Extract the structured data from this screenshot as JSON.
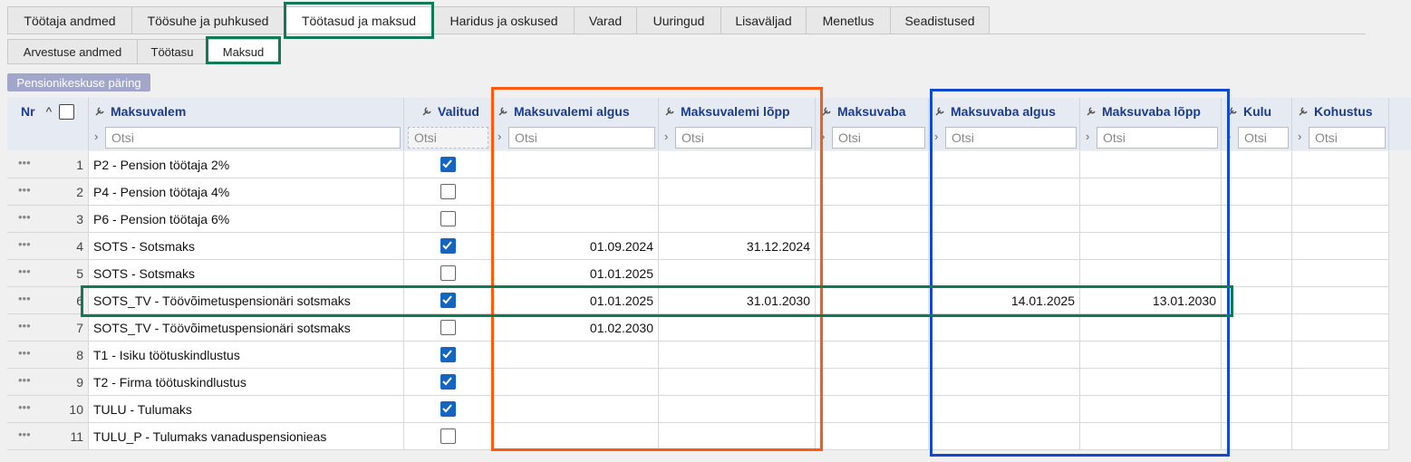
{
  "tabs": [
    "Töötaja andmed",
    "Töösuhe ja puhkused",
    "Töötasud ja maksud",
    "Haridus ja oskused",
    "Varad",
    "Uuringud",
    "Lisaväljad",
    "Menetlus",
    "Seadistused"
  ],
  "active_tab": 2,
  "subtabs": [
    "Arvestuse andmed",
    "Töötasu",
    "Maksud"
  ],
  "active_subtab": 2,
  "button": "Pensionikeskuse päring",
  "table": {
    "columns": [
      "Nr",
      "Maksuvalem",
      "Valitud",
      "Maksuvalemi algus",
      "Maksuvalemi lõpp",
      "Maksuvaba",
      "Maksuvaba algus",
      "Maksuvaba lõpp",
      "Kulu",
      "Kohustus"
    ],
    "filter_placeholder": "Otsi",
    "rows": [
      {
        "nr": 1,
        "maksuvalem": "P2 - Pension töötaja 2%",
        "valitud": true
      },
      {
        "nr": 2,
        "maksuvalem": "P4 - Pension töötaja 4%",
        "valitud": false
      },
      {
        "nr": 3,
        "maksuvalem": "P6 - Pension töötaja 6%",
        "valitud": false
      },
      {
        "nr": 4,
        "maksuvalem": "SOTS - Sotsmaks",
        "valitud": true,
        "maksuvalemi_algus": "01.09.2024",
        "maksuvalemi_lopp": "31.12.2024"
      },
      {
        "nr": 5,
        "maksuvalem": "SOTS - Sotsmaks",
        "valitud": false,
        "maksuvalemi_algus": "01.01.2025"
      },
      {
        "nr": 6,
        "maksuvalem": "SOTS_TV - Töövõimetuspensionäri sotsmaks",
        "valitud": true,
        "maksuvalemi_algus": "01.01.2025",
        "maksuvalemi_lopp": "31.01.2030",
        "maksuvaba_algus": "14.01.2025",
        "maksuvaba_lopp": "13.01.2030"
      },
      {
        "nr": 7,
        "maksuvalem": "SOTS_TV - Töövõimetuspensionäri sotsmaks",
        "valitud": false,
        "maksuvalemi_algus": "01.02.2030"
      },
      {
        "nr": 8,
        "maksuvalem": "T1 - Isiku töötuskindlustus",
        "valitud": true
      },
      {
        "nr": 9,
        "maksuvalem": "T2 - Firma töötuskindlustus",
        "valitud": true
      },
      {
        "nr": 10,
        "maksuvalem": "TULU - Tulumaks",
        "valitud": true
      },
      {
        "nr": 11,
        "maksuvalem": "TULU_P - Tulumaks vanaduspensionieas",
        "valitud": false
      }
    ]
  }
}
